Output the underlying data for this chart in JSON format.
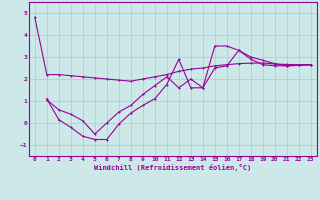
{
  "xlabel": "Windchill (Refroidissement éolien,°C)",
  "bg_color": "#cce8e8",
  "grid_color": "#aacccc",
  "line_color": "#990099",
  "xlim": [
    -0.5,
    23.5
  ],
  "ylim": [
    -1.5,
    5.5
  ],
  "yticks": [
    -1,
    0,
    1,
    2,
    3,
    4,
    5
  ],
  "xticks": [
    0,
    1,
    2,
    3,
    4,
    5,
    6,
    7,
    8,
    9,
    10,
    11,
    12,
    13,
    14,
    15,
    16,
    17,
    18,
    19,
    20,
    21,
    22,
    23
  ],
  "line1_x": [
    0,
    1,
    2,
    3,
    4,
    5,
    6,
    7,
    8,
    9,
    10,
    11,
    12,
    13,
    14,
    15,
    16,
    17,
    18,
    19,
    20,
    21,
    22,
    23
  ],
  "line1_y": [
    4.8,
    2.2,
    2.2,
    2.15,
    2.1,
    2.05,
    2.0,
    1.95,
    1.9,
    2.0,
    2.1,
    2.2,
    2.35,
    2.45,
    2.5,
    2.6,
    2.65,
    2.7,
    2.72,
    2.73,
    2.68,
    2.66,
    2.65,
    2.65
  ],
  "line2_x": [
    1,
    2,
    3,
    4,
    5,
    6,
    7,
    8,
    9,
    10,
    11,
    12,
    13,
    14,
    15,
    16,
    17,
    18,
    19,
    20,
    21,
    22,
    23
  ],
  "line2_y": [
    1.1,
    0.15,
    -0.2,
    -0.6,
    -0.75,
    -0.75,
    -0.05,
    0.45,
    0.8,
    1.1,
    1.75,
    2.9,
    1.6,
    1.6,
    3.5,
    3.5,
    3.3,
    3.0,
    2.85,
    2.7,
    2.6,
    2.62,
    2.65
  ],
  "line3_x": [
    1,
    2,
    3,
    4,
    5,
    6,
    7,
    8,
    9,
    10,
    11,
    12,
    13,
    14,
    15,
    16,
    17,
    18,
    19,
    20,
    21,
    22,
    23
  ],
  "line3_y": [
    1.05,
    0.6,
    0.4,
    0.1,
    -0.5,
    0.0,
    0.5,
    0.8,
    1.3,
    1.7,
    2.1,
    1.6,
    2.0,
    1.6,
    2.5,
    2.6,
    3.3,
    2.9,
    2.65,
    2.6,
    2.6,
    2.62,
    2.65
  ]
}
